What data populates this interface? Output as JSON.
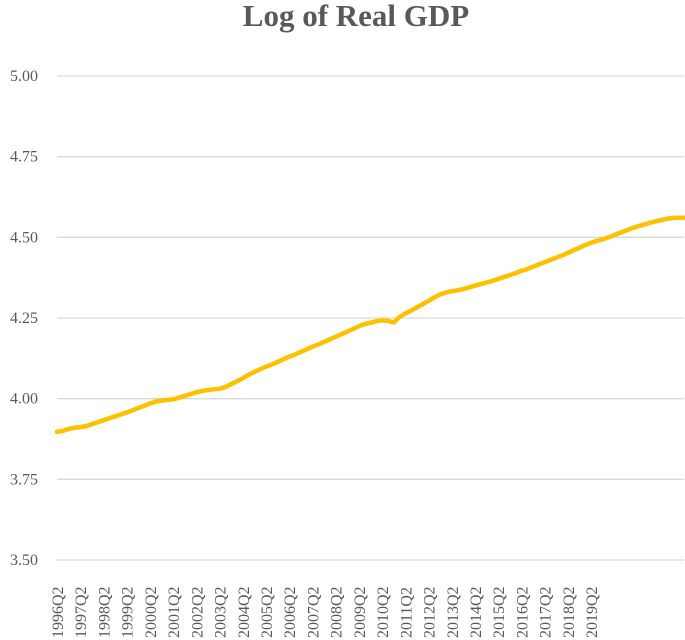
{
  "chart_data": {
    "type": "line",
    "title": "Log of Real GDP",
    "xlabel": "",
    "ylabel": "",
    "ylim": [
      3.5,
      5.0
    ],
    "yticks": [
      "3.50",
      "3.75",
      "4.00",
      "4.25",
      "4.50",
      "4.75",
      "5.00"
    ],
    "grid": "horizontal",
    "legend": "none",
    "line_color": "#FFC000",
    "x_tick_labels": [
      "1996Q2",
      "1997Q2",
      "1998Q2",
      "1999Q2",
      "2000Q2",
      "2001Q2",
      "2002Q2",
      "2003Q2",
      "2004Q2",
      "2005Q2",
      "2006Q2",
      "2007Q2",
      "2008Q2",
      "2009Q2",
      "2010Q2",
      "2011Q2",
      "2012Q2",
      "2013Q2",
      "2014Q2",
      "2015Q2",
      "2016Q2",
      "2017Q2",
      "2018Q2",
      "2019Q2"
    ],
    "series": [
      {
        "values": [
          3.897,
          3.9,
          3.906,
          3.91,
          3.912,
          3.915,
          3.921,
          3.927,
          3.933,
          3.939,
          3.945,
          3.951,
          3.957,
          3.964,
          3.971,
          3.978,
          3.985,
          3.991,
          3.994,
          3.996,
          3.998,
          4.003,
          4.008,
          4.014,
          4.02,
          4.024,
          4.027,
          4.029,
          4.031,
          4.036,
          4.045,
          4.054,
          4.063,
          4.074,
          4.083,
          4.091,
          4.099,
          4.106,
          4.114,
          4.122,
          4.13,
          4.137,
          4.145,
          4.153,
          4.161,
          4.168,
          4.176,
          4.184,
          4.192,
          4.2,
          4.208,
          4.216,
          4.225,
          4.231,
          4.235,
          4.24,
          4.243,
          4.241,
          4.236,
          4.253,
          4.264,
          4.273,
          4.283,
          4.293,
          4.303,
          4.314,
          4.323,
          4.329,
          4.333,
          4.336,
          4.34,
          4.345,
          4.35,
          4.355,
          4.36,
          4.365,
          4.371,
          4.377,
          4.383,
          4.389,
          4.396,
          4.402,
          4.409,
          4.416,
          4.423,
          4.43,
          4.437,
          4.444,
          4.452,
          4.46,
          4.468,
          4.476,
          4.483,
          4.489,
          4.494,
          4.5,
          4.507,
          4.514,
          4.521,
          4.528,
          4.534,
          4.539,
          4.544,
          4.549,
          4.553,
          4.557,
          4.56,
          4.561,
          4.561
        ]
      }
    ]
  }
}
